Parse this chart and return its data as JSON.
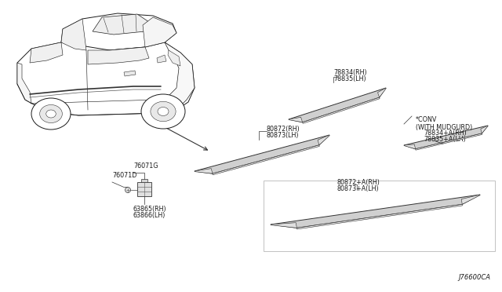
{
  "bg_color": "#ffffff",
  "diagram_code": "J76600CA",
  "labels": {
    "top_moulding_rh": "78834(RH)",
    "top_moulding_lh": "78835(LH)",
    "conv_note": "*CONV\n(WITH MUDGURD)",
    "conv_rh": "78834+A(RH)",
    "conv_lh": "78835+A(LH)",
    "mid_moulding_rh": "80872(RH)",
    "mid_moulding_lh": "80873(LH)",
    "bot_moulding_rh": "80872+A(RH)",
    "bot_moulding_lh": "80873+A(LH)",
    "clip_label": "76071G",
    "clip_small": "76071D",
    "bottom_rh": "63865(RH)",
    "bottom_lh": "63866(LH)"
  },
  "colors": {
    "line": "#1a1a1a",
    "background": "#ffffff",
    "text": "#1a1a1a",
    "strip_face": "#d0d0d0",
    "strip_top": "#f0f0f0",
    "strip_edge": "#333333"
  },
  "font_size": 5.8,
  "font_size_code": 6.0,
  "lw_car": 0.7,
  "lw_strip": 0.7,
  "lw_leader": 0.5
}
